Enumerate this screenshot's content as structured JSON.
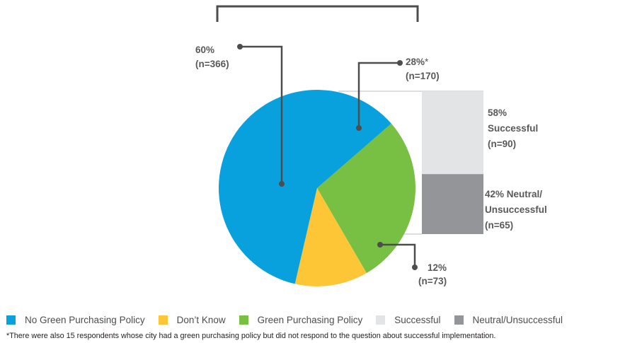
{
  "chart_data": {
    "type": "pie",
    "title": "",
    "slices": [
      {
        "name": "No Green Purchasing Policy",
        "value": 60,
        "n": 366,
        "color": "#09a1dd",
        "label_pct": "60%",
        "label_n": "(n=366)"
      },
      {
        "name": "Green Purchasing Policy",
        "value": 28,
        "n": 170,
        "color": "#78c043",
        "label_pct": "28%",
        "label_mark": "*",
        "label_n": "(n=170)"
      },
      {
        "name": "Don’t Know",
        "value": 12,
        "n": 73,
        "color": "#fdc636",
        "label_pct": "12%",
        "label_n": "(n=73)"
      }
    ],
    "breakdown": {
      "of": "Green Purchasing Policy",
      "segments": [
        {
          "name": "Successful",
          "value": 58,
          "n": 90,
          "color": "#e3e4e5",
          "label_lines": [
            "58%",
            "Successful",
            "(n=90)"
          ]
        },
        {
          "name": "Neutral/Unsuccessful",
          "value": 42,
          "n": 65,
          "color": "#939598",
          "label_lines": [
            "42% Neutral/",
            "Unsuccessful",
            "(n=65)"
          ]
        }
      ]
    }
  },
  "legend": [
    {
      "label": "No Green Purchasing Policy",
      "color": "#09a1dd"
    },
    {
      "label": "Don’t Know",
      "color": "#fdc636"
    },
    {
      "label": "Green Purchasing Policy",
      "color": "#78c043"
    },
    {
      "label": "Successful",
      "color": "#e3e4e5"
    },
    {
      "label": "Neutral/Unsuccessful",
      "color": "#939598"
    }
  ],
  "footnote": "*There were also 15 respondents whose city had a green purchasing policy but did not respond to the question about successful implementation."
}
